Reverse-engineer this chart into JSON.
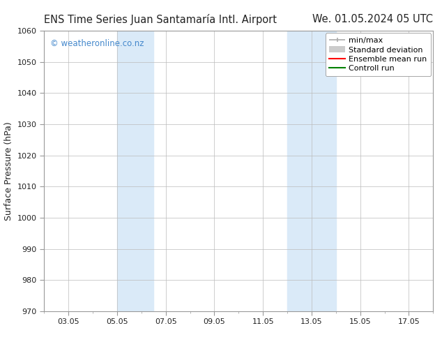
{
  "title_left": "ENS Time Series Juan Santamaría Intl. Airport",
  "title_right": "We. 01.05.2024 05 UTC",
  "ylabel": "Surface Pressure (hPa)",
  "ylim": [
    970,
    1060
  ],
  "yticks": [
    970,
    980,
    990,
    1000,
    1010,
    1020,
    1030,
    1040,
    1050,
    1060
  ],
  "xtick_labels": [
    "03.05",
    "05.05",
    "07.05",
    "09.05",
    "11.05",
    "13.05",
    "15.05",
    "17.05"
  ],
  "xtick_positions": [
    2,
    4,
    6,
    8,
    10,
    12,
    14,
    16
  ],
  "shaded_bands": [
    {
      "x_start": 4.0,
      "x_end": 5.5,
      "color": "#daeaf8"
    },
    {
      "x_start": 11.0,
      "x_end": 13.0,
      "color": "#daeaf8"
    }
  ],
  "watermark_text": "© weatheronline.co.nz",
  "watermark_color": "#4488cc",
  "bg_color": "#ffffff",
  "grid_color": "#bbbbbb",
  "spine_color": "#999999",
  "font_color": "#222222",
  "title_fontsize": 10.5,
  "axis_label_fontsize": 9,
  "tick_fontsize": 8,
  "legend_fontsize": 8,
  "legend_items": [
    {
      "label": "min/max",
      "color": "#aaaaaa"
    },
    {
      "label": "Standard deviation",
      "color": "#cccccc"
    },
    {
      "label": "Ensemble mean run",
      "color": "#ff0000"
    },
    {
      "label": "Controll run",
      "color": "#008000"
    }
  ]
}
